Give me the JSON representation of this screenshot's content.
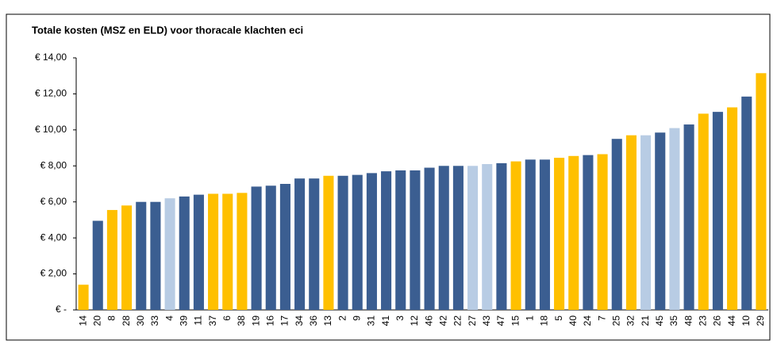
{
  "chart_data": {
    "type": "bar",
    "title": "Totale kosten (MSZ en ELD) voor thoracale klachten eci",
    "categories": [
      "14",
      "20",
      "8",
      "28",
      "30",
      "33",
      "4",
      "39",
      "11",
      "37",
      "6",
      "38",
      "19",
      "16",
      "17",
      "34",
      "36",
      "13",
      "2",
      "9",
      "31",
      "41",
      "3",
      "12",
      "46",
      "42",
      "22",
      "27",
      "43",
      "47",
      "15",
      "1",
      "18",
      "5",
      "40",
      "24",
      "7",
      "25",
      "32",
      "21",
      "45",
      "35",
      "48",
      "23",
      "26",
      "44",
      "10",
      "29"
    ],
    "values": [
      1.4,
      4.95,
      5.55,
      5.8,
      6.0,
      6.0,
      6.2,
      6.3,
      6.4,
      6.45,
      6.45,
      6.5,
      6.85,
      6.9,
      7.0,
      7.3,
      7.3,
      7.45,
      7.45,
      7.5,
      7.6,
      7.7,
      7.75,
      7.75,
      7.9,
      8.0,
      8.0,
      8.0,
      8.1,
      8.15,
      8.25,
      8.35,
      8.35,
      8.45,
      8.55,
      8.6,
      8.65,
      9.5,
      9.7,
      9.7,
      9.85,
      10.1,
      10.3,
      10.9,
      11.0,
      11.25,
      11.85,
      13.15
    ],
    "colors": [
      "#ffc000",
      "#3b5e91",
      "#ffc000",
      "#ffc000",
      "#3b5e91",
      "#3b5e91",
      "#b8cce4",
      "#3b5e91",
      "#3b5e91",
      "#ffc000",
      "#ffc000",
      "#ffc000",
      "#3b5e91",
      "#3b5e91",
      "#3b5e91",
      "#3b5e91",
      "#3b5e91",
      "#ffc000",
      "#3b5e91",
      "#3b5e91",
      "#3b5e91",
      "#3b5e91",
      "#3b5e91",
      "#3b5e91",
      "#3b5e91",
      "#3b5e91",
      "#3b5e91",
      "#b8cce4",
      "#b8cce4",
      "#3b5e91",
      "#ffc000",
      "#3b5e91",
      "#3b5e91",
      "#ffc000",
      "#ffc000",
      "#3b5e91",
      "#ffc000",
      "#3b5e91",
      "#ffc000",
      "#b8cce4",
      "#3b5e91",
      "#b8cce4",
      "#3b5e91",
      "#ffc000",
      "#3b5e91",
      "#ffc000",
      "#3b5e91",
      "#ffc000"
    ],
    "ylim": [
      0,
      14
    ],
    "yticks": [
      {
        "value": 0,
        "label": "€ -"
      },
      {
        "value": 2,
        "label": "€ 2,00"
      },
      {
        "value": 4,
        "label": "€ 4,00"
      },
      {
        "value": 6,
        "label": "€ 6,00"
      },
      {
        "value": 8,
        "label": "€ 8,00"
      },
      {
        "value": 10,
        "label": "€ 10,00"
      },
      {
        "value": 12,
        "label": "€ 12,00"
      },
      {
        "value": 14,
        "label": "€ 14,00"
      }
    ],
    "grid": false
  }
}
